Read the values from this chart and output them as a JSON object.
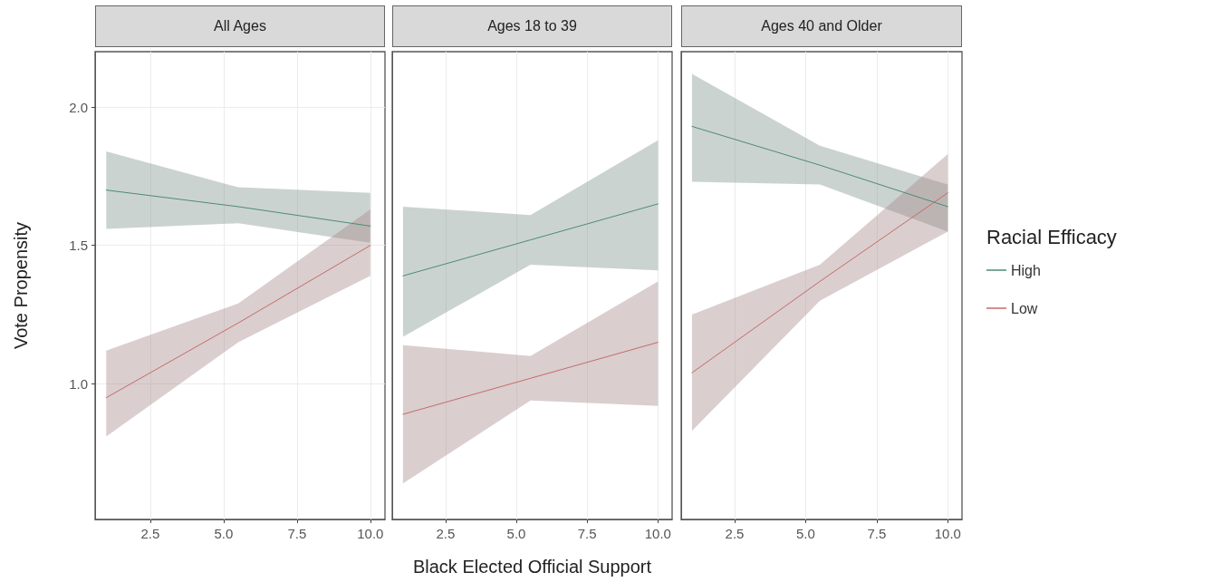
{
  "chart_data": [
    {
      "type": "line",
      "title": "All Ages",
      "ylabel": "Vote Propensity",
      "xlim": [
        0.62,
        10.5
      ],
      "xticks": [
        {
          "value": 2.5,
          "label": "2.5"
        },
        {
          "value": 5,
          "label": "5.0"
        },
        {
          "value": 7.5,
          "label": "7.5"
        },
        {
          "value": 10,
          "label": "10.0"
        }
      ],
      "ylim": [
        0.51,
        2.2
      ],
      "yticks": [
        {
          "value": 1,
          "label": "1.0"
        },
        {
          "value": 1.5,
          "label": "1.5"
        },
        {
          "value": 2,
          "label": "2.0"
        }
      ],
      "grid": true,
      "legend": false,
      "series": [
        {
          "color": "#4d8b75",
          "x": [
            1,
            5.5,
            10
          ],
          "values": [
            1.7,
            1.64,
            1.57
          ],
          "lower": [
            1.56,
            1.58,
            1.51
          ],
          "upper": [
            1.84,
            1.71,
            1.69
          ]
        },
        {
          "color": "#c76a6a",
          "x": [
            1,
            5.5,
            10
          ],
          "values": [
            0.95,
            1.22,
            1.5
          ],
          "lower": [
            0.81,
            1.15,
            1.39
          ],
          "upper": [
            1.12,
            1.29,
            1.63
          ]
        }
      ]
    },
    {
      "type": "line",
      "title": "Ages 18 to 39",
      "xlabel": "Black Elected Official Support",
      "xlim": [
        0.62,
        10.5
      ],
      "xticks": [
        {
          "value": 2.5,
          "label": "2.5"
        },
        {
          "value": 5,
          "label": "5.0"
        },
        {
          "value": 7.5,
          "label": "7.5"
        },
        {
          "value": 10,
          "label": "10.0"
        }
      ],
      "ylim": [
        0.51,
        2.2
      ],
      "tick_labels": "x",
      "grid": true,
      "legend": false,
      "series": [
        {
          "color": "#4d8b75",
          "x": [
            1,
            5.5,
            10
          ],
          "values": [
            1.39,
            1.52,
            1.65
          ],
          "lower": [
            1.17,
            1.43,
            1.41
          ],
          "upper": [
            1.64,
            1.61,
            1.88
          ]
        },
        {
          "color": "#c76a6a",
          "x": [
            1,
            5.5,
            10
          ],
          "values": [
            0.89,
            1.02,
            1.15
          ],
          "lower": [
            0.64,
            0.94,
            0.92
          ],
          "upper": [
            1.14,
            1.1,
            1.37
          ]
        }
      ]
    },
    {
      "type": "line",
      "title": "Ages 40 and Older",
      "legend_title": "Racial Efficacy",
      "xlim": [
        0.62,
        10.5
      ],
      "xticks": [
        {
          "value": 2.5,
          "label": "2.5"
        },
        {
          "value": 5,
          "label": "5.0"
        },
        {
          "value": 7.5,
          "label": "7.5"
        },
        {
          "value": 10,
          "label": "10.0"
        }
      ],
      "ylim": [
        0.51,
        2.2
      ],
      "tick_labels": "x",
      "grid": true,
      "legend": "right",
      "series": [
        {
          "name": "High",
          "color": "#4d8b75",
          "x": [
            1,
            5.5,
            10
          ],
          "values": [
            1.93,
            1.79,
            1.64
          ],
          "lower": [
            1.73,
            1.72,
            1.55
          ],
          "upper": [
            2.12,
            1.86,
            1.72
          ]
        },
        {
          "name": "Low",
          "color": "#c76a6a",
          "x": [
            1,
            5.5,
            10
          ],
          "values": [
            1.04,
            1.37,
            1.69
          ],
          "lower": [
            0.83,
            1.3,
            1.55
          ],
          "upper": [
            1.25,
            1.43,
            1.83
          ]
        }
      ]
    }
  ]
}
